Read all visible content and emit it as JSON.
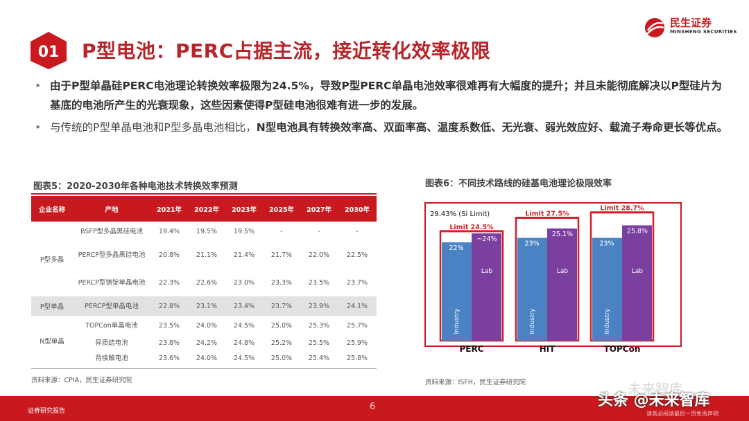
{
  "header": {
    "section_number": "01",
    "title": "P型电池：PERC占据主流，接近转化效率极限",
    "logo_cn": "民生证券",
    "logo_en": "MINSHENG SECURITIES"
  },
  "bullets": [
    {
      "text_normal_1": "由于P型单晶硅PERC电池理论转换效率极限为24.5%，导致P型PERC单晶电池效率很难再有大幅度的提升；并且未能彻底解决以P型硅片为基底的电池所产生的光衰现象，这些因素使得P型硅电池很难有进一步的发展。"
    },
    {
      "text_normal": "与传统的P型单晶电池和P型多晶电池相比，",
      "text_bold": "N型电池具有转换效率高、双面率高、温度系数低、无光衰、弱光效应好、载流子寿命更长等优点。"
    }
  ],
  "figure5": {
    "title": "图表5：2020-2030年各种电池技术转换效率预测",
    "headers": [
      "企业名称",
      "产地",
      "2021年",
      "2022年",
      "2023年",
      "2025年",
      "2027年",
      "2030年"
    ],
    "groups": [
      {
        "name": "P型多晶",
        "rows": [
          {
            "product": "BSFP型多晶黑硅电池",
            "values": [
              "19.4%",
              "19.5%",
              "19.5%",
              "-",
              "-",
              "-"
            ]
          },
          {
            "product": "PERCP型多晶黑硅电池",
            "values": [
              "20.8%",
              "21.1%",
              "21.4%",
              "21.7%",
              "22.0%",
              "22.5%"
            ]
          },
          {
            "product": "PERCP型铸锭单晶电池",
            "values": [
              "22.3%",
              "22.6%",
              "23.0%",
              "23.3%",
              "23.5%",
              "23.7%"
            ]
          }
        ]
      },
      {
        "name": "P型单晶",
        "rows": [
          {
            "product": "PERCP型单晶电池",
            "values": [
              "22.8%",
              "23.1%",
              "23.4%",
              "23.7%",
              "23.9%",
              "24.1%"
            ]
          }
        ]
      },
      {
        "name": "N型单晶",
        "rows": [
          {
            "product": "TOPCon单晶电池",
            "values": [
              "23.5%",
              "24.0%",
              "24.5%",
              "25.0%",
              "25.3%",
              "25.7%"
            ]
          },
          {
            "product": "异质结电池",
            "values": [
              "23.8%",
              "24.2%",
              "24.8%",
              "25.2%",
              "25.5%",
              "25.9%"
            ]
          },
          {
            "product": "背接触电池",
            "values": [
              "23.6%",
              "24.0%",
              "24.5%",
              "25.0%",
              "25.4%",
              "25.8%"
            ]
          }
        ]
      }
    ],
    "source": "资料来源：CPIA，民生证券研究院"
  },
  "figure6": {
    "title": "图表6：不同技术路线的硅基电池理论极限效率",
    "source": "资料来源：ISFH，民生证券研究院"
  },
  "chart_data": {
    "type": "bar",
    "title": "图表6：不同技术路线的硅基电池理论极限效率",
    "si_limit_label": "29.43% (Si Limit)",
    "si_limit": 29.43,
    "categories": [
      "PERC",
      "HIT",
      "TOPCon"
    ],
    "limits": [
      24.5,
      27.5,
      28.7
    ],
    "limit_labels": [
      "Limit 24.5%",
      "Limit 27.5%",
      "Limit 28.7%"
    ],
    "series": [
      {
        "name": "Industry",
        "values": [
          22,
          23,
          23
        ],
        "labels": [
          "22%",
          "23%",
          "23%"
        ]
      },
      {
        "name": "Lab",
        "values": [
          24,
          25.1,
          25.8
        ],
        "labels": [
          "~24%",
          "25.1%",
          "25.8%"
        ]
      }
    ],
    "ylim": [
      0,
      29.43
    ],
    "colors": {
      "industry": "#4a82c4",
      "lab": "#7b3fa0",
      "limit": "#d41f26"
    }
  },
  "footer": {
    "left_text": "证券研究报告",
    "page_number": "6",
    "disclaimer": "请务必阅读最后一页免责声明",
    "watermark": "头条 @未来智库",
    "watermark2": "未来智库"
  },
  "colors": {
    "brand": "#c8191e",
    "table_gray": "#e2e2e2"
  }
}
